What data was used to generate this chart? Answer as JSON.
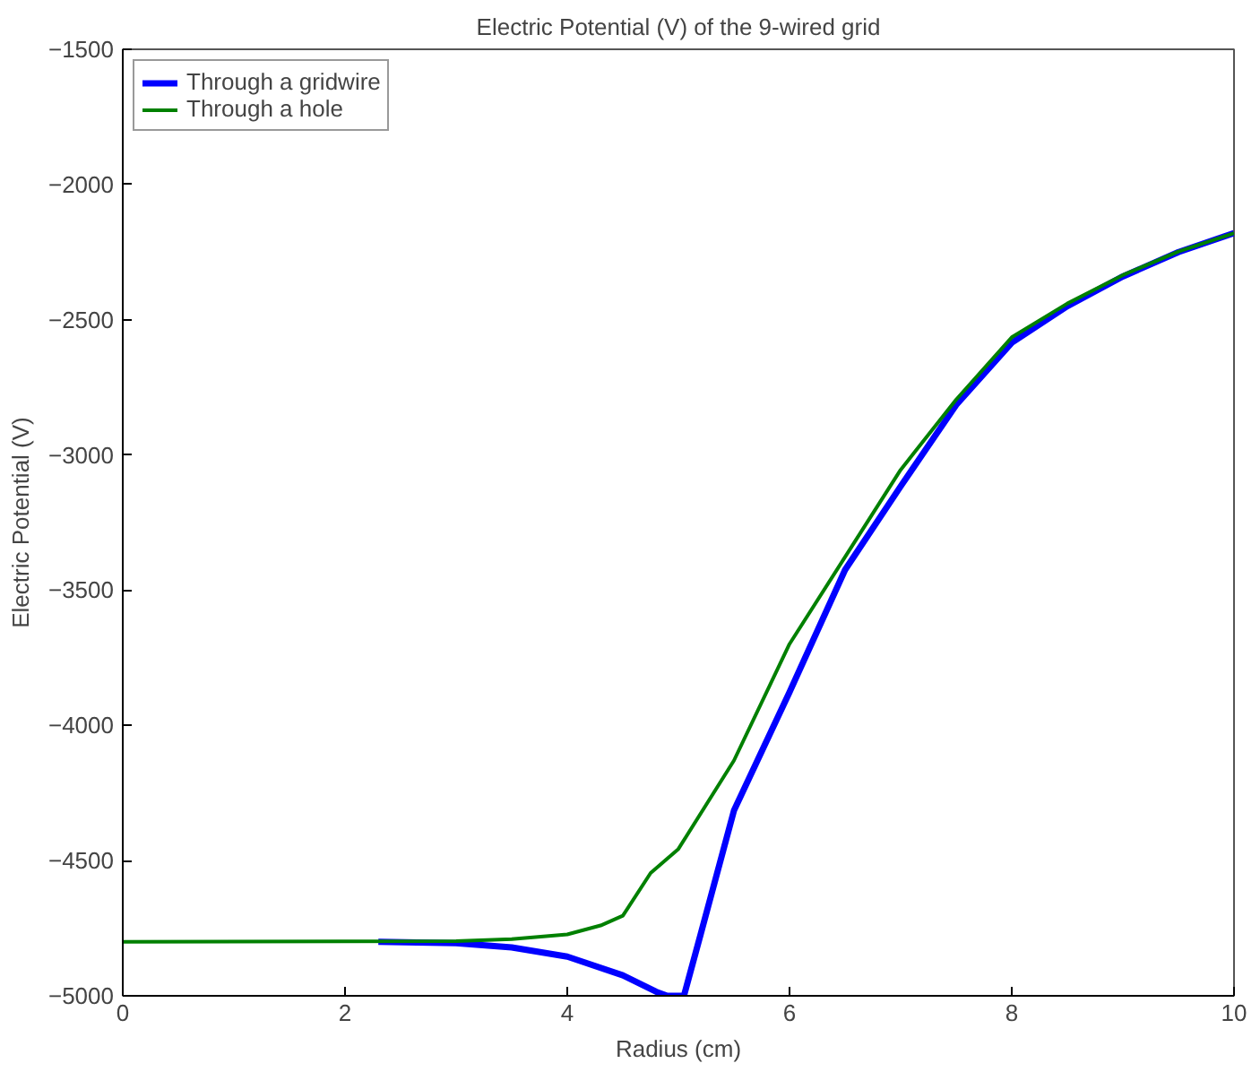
{
  "chart_data": {
    "type": "line",
    "title": "Electric Potential (V) of the 9-wired grid",
    "xlabel": "Radius (cm)",
    "ylabel": "Electric Potential (V)",
    "xlim": [
      0,
      10
    ],
    "ylim": [
      -5000,
      -1500
    ],
    "xticks": [
      0,
      2,
      4,
      6,
      8,
      10
    ],
    "yticks": [
      -5000,
      -4500,
      -4000,
      -3500,
      -3000,
      -2500,
      -2000,
      -1500
    ],
    "grid": false,
    "legend": "top left",
    "line_style": "solid",
    "series": [
      {
        "name": "Through a gridwire",
        "color": "#0000ff",
        "x": [
          2.3,
          3,
          3.5,
          4,
          4.5,
          4.8,
          4.9,
          5.05,
          5.2,
          5.5,
          6,
          6.5,
          7,
          7.5,
          8,
          8.5,
          9,
          9.5,
          10
        ],
        "values": [
          -4800,
          -4805,
          -4821,
          -4855,
          -4924,
          -4985,
          -5000,
          -5000,
          -4773,
          -4315,
          -3877,
          -3425,
          -3116,
          -2815,
          -2585,
          -2450,
          -2340,
          -2250,
          -2180
        ]
      },
      {
        "name": "Through a hole",
        "color": "#008000",
        "x": [
          0,
          3,
          3.5,
          4,
          4.3,
          4.5,
          4.75,
          5,
          5.5,
          6,
          6.5,
          7,
          7.5,
          8,
          8.5,
          9,
          9.5,
          10
        ],
        "values": [
          -4800,
          -4798,
          -4790,
          -4773,
          -4740,
          -4704,
          -4546,
          -4457,
          -4130,
          -3699,
          -3377,
          -3055,
          -2795,
          -2565,
          -2440,
          -2335,
          -2248,
          -2180
        ]
      }
    ]
  }
}
